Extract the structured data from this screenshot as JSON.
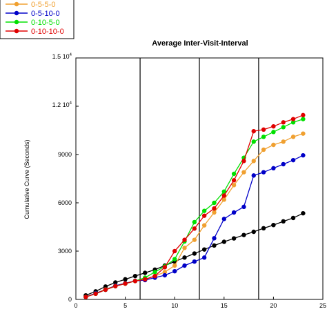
{
  "chart_data": {
    "type": "line",
    "title": "Average Inter-Visit-Interval",
    "xlabel": "",
    "ylabel": "Cumulative Curve (Seconds)",
    "xlim": [
      0,
      25
    ],
    "ylim": [
      0,
      15000
    ],
    "x_ticks": [
      0,
      5,
      10,
      15,
      20,
      25
    ],
    "y_ticks": [
      {
        "value": 0,
        "label": "0",
        "exp": ""
      },
      {
        "value": 3000,
        "label": "3000",
        "exp": ""
      },
      {
        "value": 6000,
        "label": "6000",
        "exp": ""
      },
      {
        "value": 9000,
        "label": "9000",
        "exp": ""
      },
      {
        "value": 12000,
        "label": "1.2 10",
        "exp": "4"
      },
      {
        "value": 15000,
        "label": "1.5 10",
        "exp": "4"
      }
    ],
    "vertical_lines": [
      6.5,
      12.5,
      18.5
    ],
    "grid": false,
    "legend_position": "top-left",
    "x": [
      1,
      2,
      3,
      4,
      5,
      6,
      7,
      8,
      9,
      10,
      11,
      12,
      13,
      14,
      15,
      16,
      17,
      18,
      19,
      20,
      21,
      22,
      23
    ],
    "series": [
      {
        "name": "",
        "color": "#000000",
        "values": [
          250,
          500,
          800,
          1050,
          1250,
          1450,
          1650,
          1850,
          2100,
          2350,
          2600,
          2850,
          3100,
          3350,
          3580,
          3790,
          4000,
          4200,
          4420,
          4620,
          4850,
          5060,
          5350
        ]
      },
      {
        "name": "0-5-5-0",
        "color": "#f0a030",
        "values": [
          150,
          380,
          620,
          850,
          1000,
          1150,
          1250,
          1450,
          1700,
          2100,
          3200,
          3700,
          4600,
          5400,
          6200,
          7100,
          7900,
          8600,
          9300,
          9600,
          9800,
          10100,
          10300
        ]
      },
      {
        "name": "0-5-10-0",
        "color": "#0000c8",
        "values": [
          150,
          380,
          600,
          850,
          1000,
          1150,
          1200,
          1350,
          1500,
          1750,
          2100,
          2350,
          2600,
          3800,
          5000,
          5400,
          5750,
          7700,
          7900,
          8150,
          8400,
          8650,
          8950
        ]
      },
      {
        "name": "0-10-5-0",
        "color": "#00e000",
        "values": [
          150,
          350,
          600,
          820,
          980,
          1140,
          1350,
          1700,
          2050,
          2500,
          3600,
          4800,
          5500,
          6000,
          6700,
          7800,
          8800,
          9800,
          10100,
          10400,
          10700,
          11000,
          11200
        ]
      },
      {
        "name": "0-10-10-0",
        "color": "#e00000",
        "values": [
          150,
          350,
          600,
          820,
          980,
          1140,
          1250,
          1450,
          2000,
          3000,
          3700,
          4400,
          5200,
          5650,
          6450,
          7400,
          8600,
          10450,
          10550,
          10750,
          11000,
          11200,
          11450
        ]
      }
    ]
  }
}
